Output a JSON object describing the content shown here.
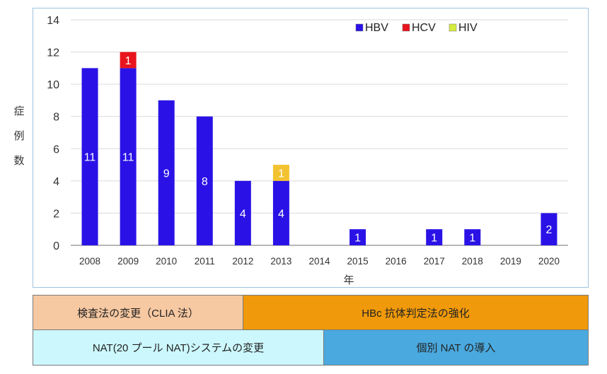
{
  "chart_data": {
    "type": "bar",
    "stacked": true,
    "categories": [
      "2008",
      "2009",
      "2010",
      "2011",
      "2012",
      "2013",
      "2014",
      "2015",
      "2016",
      "2017",
      "2018",
      "2019",
      "2020"
    ],
    "series": [
      {
        "name": "HBV",
        "color": "#2a12e6",
        "values": [
          11,
          11,
          9,
          8,
          4,
          4,
          0,
          1,
          0,
          1,
          1,
          0,
          2
        ]
      },
      {
        "name": "HCV",
        "color": "#e8131c",
        "values": [
          0,
          1,
          0,
          0,
          0,
          0,
          0,
          0,
          0,
          0,
          0,
          0,
          0
        ]
      },
      {
        "name": "HIV",
        "color": "#f2c230",
        "legend_color": "#d4ec3f",
        "values": [
          0,
          0,
          0,
          0,
          0,
          1,
          0,
          0,
          0,
          0,
          0,
          0,
          0
        ]
      }
    ],
    "xlabel": "年",
    "ylabel": "症例数",
    "ylabel_chars": [
      "症",
      "例",
      "数"
    ],
    "ylim": [
      0,
      14
    ],
    "yticks": [
      0,
      2,
      4,
      6,
      8,
      10,
      12,
      14
    ],
    "grid": true,
    "legend_position": "top-right"
  },
  "bands": {
    "clia": "検査法の変更（CLIA 法）",
    "hbc": "HBc 抗体判定法の強化",
    "pool": "NAT(20 プール NAT)システムの変更",
    "individual": "個別 NAT の導入"
  }
}
